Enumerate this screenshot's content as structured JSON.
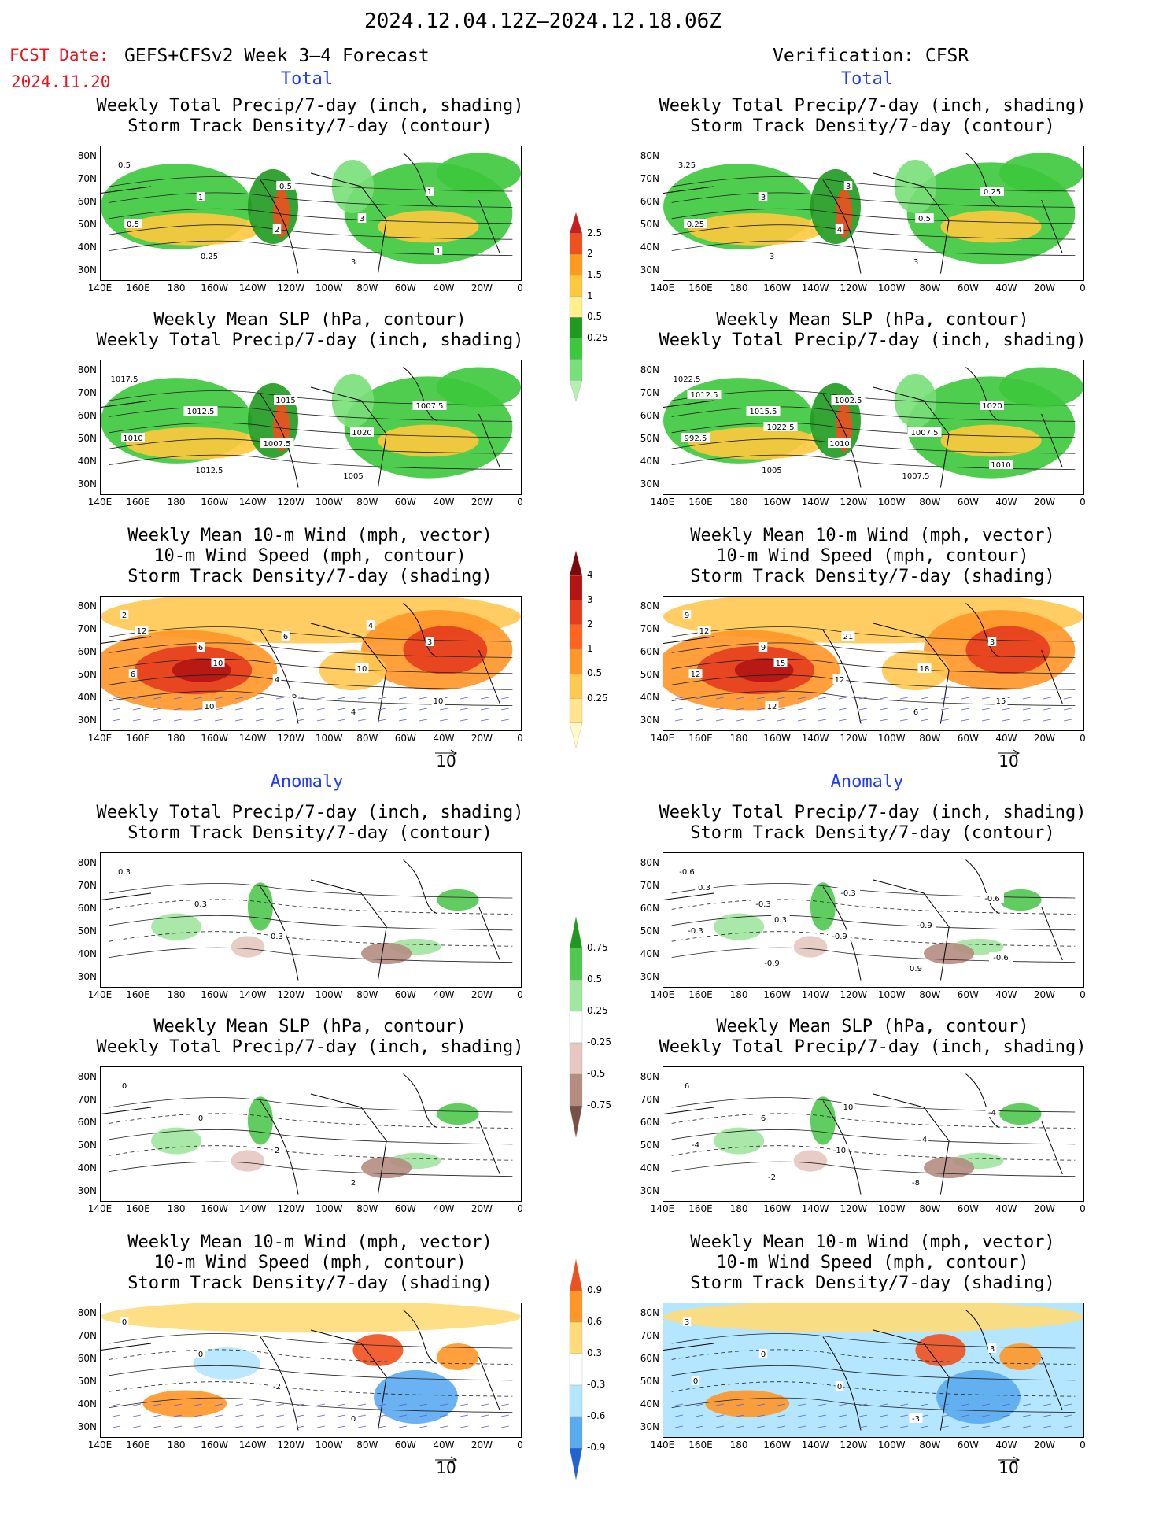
{
  "header": {
    "period": "2024.12.04.12Z–2024.12.18.06Z",
    "fcst_label": "FCST Date:",
    "fcst_date": "2024.11.20",
    "model": "GEFS+CFSv2 Week 3–4 Forecast",
    "verification": "Verification: CFSR"
  },
  "sections": {
    "total": "Total",
    "anomaly": "Anomaly"
  },
  "panel_titles": {
    "precip_storm": "Weekly Total Precip/7-day (inch, shading)\nStorm Track Density/7-day (contour)",
    "slp_precip": "Weekly Mean SLP (hPa, contour)\nWeekly Total Precip/7-day (inch, shading)",
    "wind_storm": "Weekly Mean 10-m Wind (mph, vector)\n10-m Wind Speed (mph, contour)\nStorm Track Density/7-day (shading)"
  },
  "axes": {
    "x_ticks": [
      "140E",
      "160E",
      "180",
      "160W",
      "140W",
      "120W",
      "100W",
      "80W",
      "60W",
      "40W",
      "20W",
      "0"
    ],
    "y_ticks": [
      "80N",
      "70N",
      "60N",
      "50N",
      "40N",
      "30N"
    ]
  },
  "vector_ref": "10",
  "colorbars": {
    "precip_total": {
      "levels": [
        "0.25",
        "0.5",
        "1",
        "1.5",
        "2",
        "2.5"
      ],
      "colors": [
        "#b4f0b4",
        "#78e078",
        "#3cc83c",
        "#1e9b1e",
        "#fff08c",
        "#ffc83c",
        "#ff9a1e",
        "#f0501e",
        "#c81e1e"
      ]
    },
    "storm_total": {
      "levels": [
        "0.25",
        "0.5",
        "1",
        "2",
        "3",
        "4"
      ],
      "colors": [
        "#fffac8",
        "#ffe68c",
        "#ffc850",
        "#ff9628",
        "#ff641e",
        "#e63c1e",
        "#b41414",
        "#7a0a0a"
      ]
    },
    "precip_anom": {
      "levels": [
        "0.75",
        "0.5",
        "0.25",
        "-0.25",
        "-0.5",
        "-0.75"
      ],
      "colors": [
        "#1e9b1e",
        "#50c850",
        "#a0e6a0",
        "#ffffff",
        "#e6c8c0",
        "#b48c82",
        "#785048"
      ]
    },
    "storm_anom": {
      "levels": [
        "0.9",
        "0.6",
        "0.3",
        "-0.3",
        "-0.6",
        "-0.9"
      ],
      "colors": [
        "#f0501e",
        "#ff9628",
        "#ffdc78",
        "#ffffff",
        "#b4e6ff",
        "#5aaaf0",
        "#1e64d2"
      ]
    }
  },
  "contour_labels": {
    "p1": [
      "0.5",
      "1",
      "2",
      "3",
      "1",
      "0.5",
      "0.25",
      "0.5",
      "3",
      "1"
    ],
    "p2": [
      "3.25",
      "3",
      "4",
      "3",
      "0.25",
      "0.25",
      "3",
      "3",
      "0.5"
    ],
    "p3": [
      "1017.5",
      "1012.5",
      "1007.5",
      "1005",
      "1007.5",
      "1010",
      "1012.5",
      "1015",
      "1020"
    ],
    "p4": [
      "1022.5",
      "1015.5",
      "1010",
      "1007.5",
      "1020",
      "992.5",
      "1005",
      "1002.5",
      "1007.5",
      "1010",
      "1012.5",
      "1022.5"
    ],
    "p5": [
      "2",
      "6",
      "4",
      "4",
      "3",
      "6",
      "10",
      "6",
      "10",
      "10",
      "12",
      "10",
      "6",
      "4"
    ],
    "p6": [
      "9",
      "9",
      "12",
      "6",
      "3",
      "12",
      "12",
      "21",
      "18",
      "15",
      "12",
      "15"
    ],
    "p7": [
      "0.3",
      "0.3",
      "0.3"
    ],
    "p8": [
      "-0.6",
      "-0.3",
      "-0.9",
      "0.9",
      "-0.6",
      "-0.3",
      "-0.9",
      "-0.3",
      "-0.9",
      "-0.6",
      "0.3",
      "0.3"
    ],
    "p9": [
      "0",
      "0",
      "2",
      "2"
    ],
    "p10": [
      "6",
      "6",
      "-10",
      "-8",
      "-4",
      "-4",
      "-2",
      "10",
      "4"
    ],
    "p11": [
      "0",
      "0",
      "-2",
      "0"
    ],
    "p12": [
      "3",
      "0",
      "0",
      "-3",
      "3",
      "0"
    ]
  }
}
